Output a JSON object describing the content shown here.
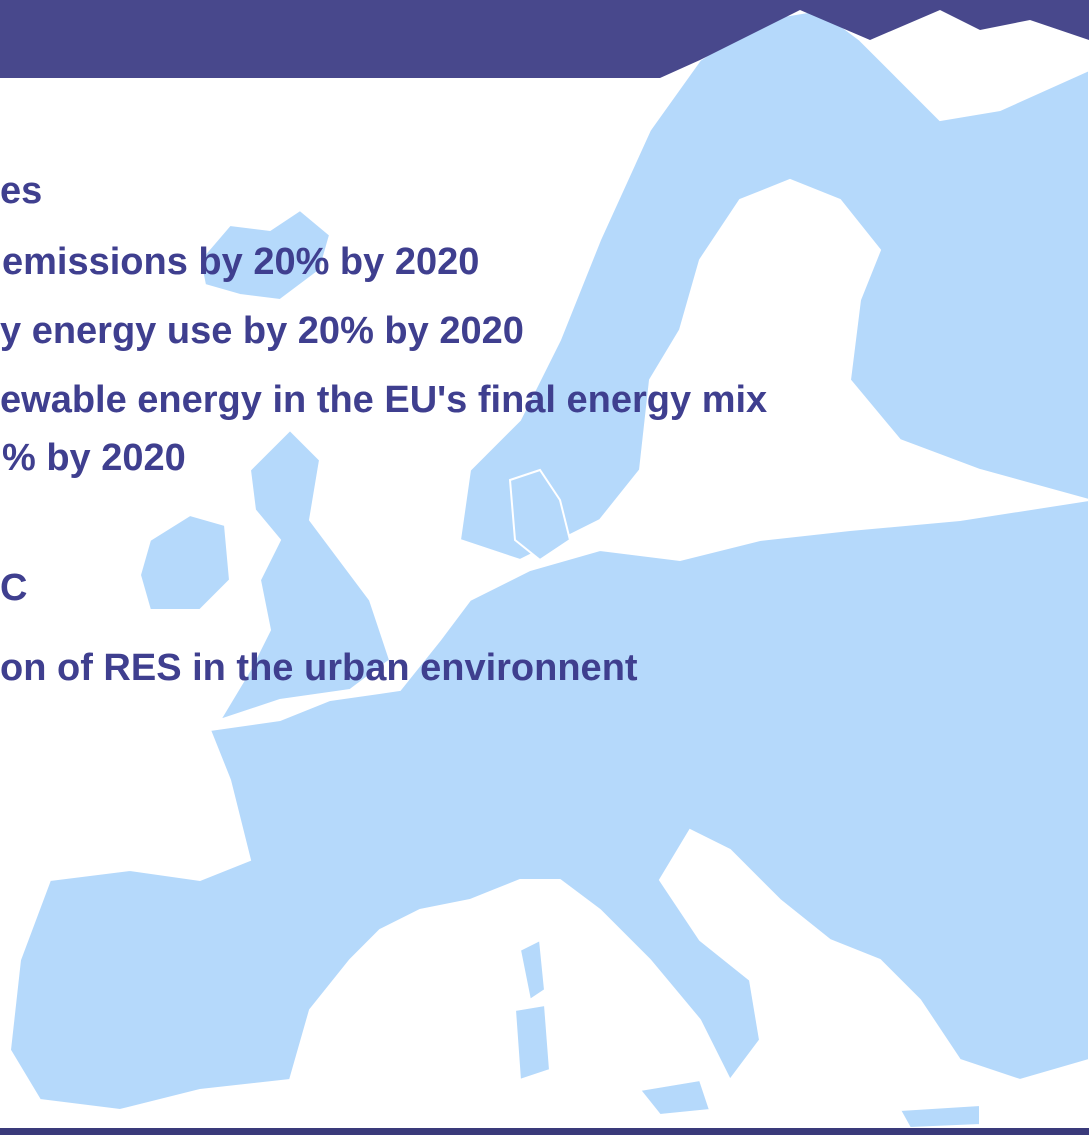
{
  "slide": {
    "lines": [
      "es",
      "emissions by 20% by 2020",
      "y energy use by 20% by 2020",
      "ewable energy in the EU's final energy mix",
      "% by 2020",
      "C",
      "on of RES in the urban environnent"
    ]
  }
}
